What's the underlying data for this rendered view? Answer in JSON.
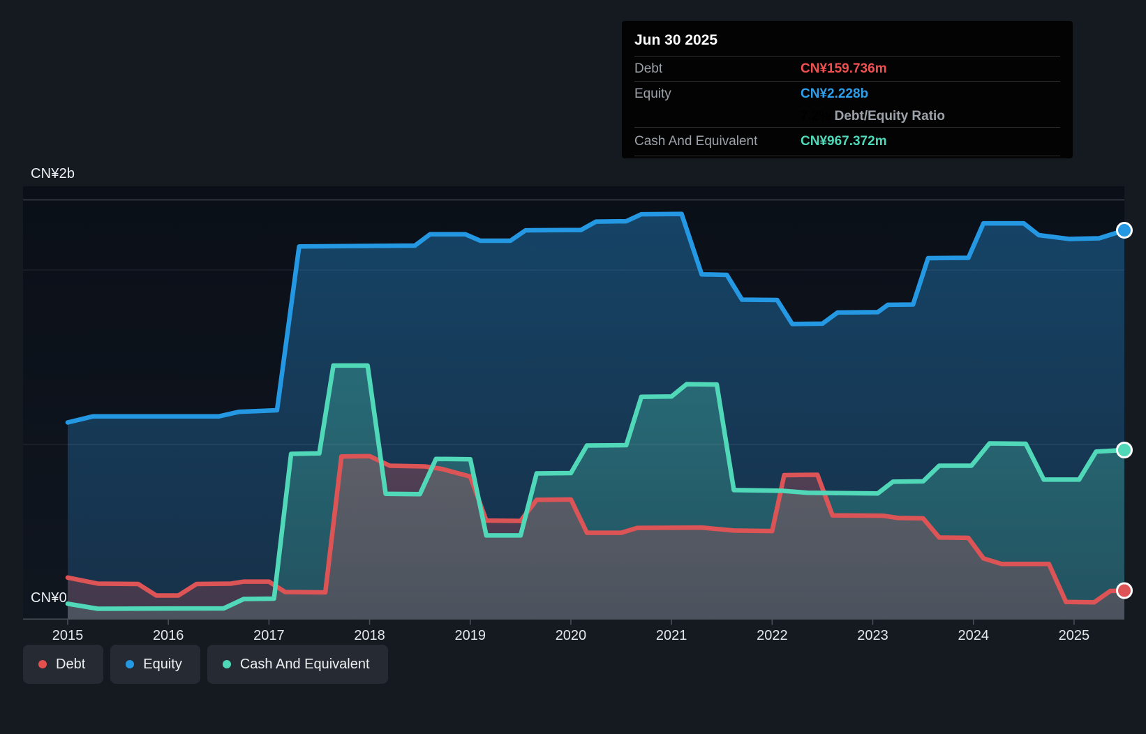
{
  "tooltip": {
    "date": "Jun 30 2025",
    "debt_label": "Debt",
    "debt_value": "CN¥159.736m",
    "equity_label": "Equity",
    "equity_value": "CN¥2.228b",
    "ratio_value": "7.2%",
    "ratio_label": "Debt/Equity Ratio",
    "cash_label": "Cash And Equivalent",
    "cash_value": "CN¥967.372m"
  },
  "y_axis": {
    "top_label": "CN¥2b",
    "zero_label": "CN¥0"
  },
  "x_axis": {
    "ticks": [
      "2015",
      "2016",
      "2017",
      "2018",
      "2019",
      "2020",
      "2021",
      "2022",
      "2023",
      "2024",
      "2025"
    ]
  },
  "legend": {
    "items": [
      {
        "label": "Debt",
        "color": "#E4504E"
      },
      {
        "label": "Equity",
        "color": "#2498E3"
      },
      {
        "label": "Cash And Equivalent",
        "color": "#4FD8B8"
      }
    ]
  },
  "colors": {
    "background": "#151A21",
    "plot_top": "#0A0F18",
    "plot_bottom": "#10161F",
    "axis": "#4A5159",
    "grid_strong": "#3A414A",
    "grid_faint": "rgba(205,215,230,0.10)",
    "debt": "#DC5456",
    "equity": "#2498E3",
    "cash": "#50D8B9"
  },
  "chart_data": {
    "type": "area",
    "unit": "CN¥ millions",
    "x_label": "Year",
    "x_range": [
      2015,
      2025.5
    ],
    "ylim_m": [
      0,
      2400
    ],
    "y_labeled_gridline_m": 2000,
    "grid": "horizontal",
    "legend_position": "bottom",
    "last_point_date": "Jun 30 2025",
    "series": [
      {
        "name": "Equity",
        "color": "#2498E3",
        "final_value": "CN¥2.228b",
        "points": [
          [
            2015.0,
            1125
          ],
          [
            2015.25,
            1160
          ],
          [
            2016.5,
            1160
          ],
          [
            2016.7,
            1186
          ],
          [
            2017.08,
            1195
          ],
          [
            2017.3,
            2135
          ],
          [
            2018.45,
            2140
          ],
          [
            2018.6,
            2205
          ],
          [
            2018.95,
            2205
          ],
          [
            2019.1,
            2168
          ],
          [
            2019.4,
            2168
          ],
          [
            2019.55,
            2228
          ],
          [
            2020.1,
            2230
          ],
          [
            2020.25,
            2278
          ],
          [
            2020.55,
            2280
          ],
          [
            2020.7,
            2320
          ],
          [
            2021.1,
            2322
          ],
          [
            2021.3,
            1975
          ],
          [
            2021.55,
            1972
          ],
          [
            2021.7,
            1830
          ],
          [
            2022.05,
            1828
          ],
          [
            2022.2,
            1690
          ],
          [
            2022.5,
            1692
          ],
          [
            2022.65,
            1756
          ],
          [
            2023.05,
            1758
          ],
          [
            2023.15,
            1800
          ],
          [
            2023.4,
            1802
          ],
          [
            2023.55,
            2068
          ],
          [
            2023.95,
            2070
          ],
          [
            2024.1,
            2268
          ],
          [
            2024.5,
            2268
          ],
          [
            2024.65,
            2200
          ],
          [
            2024.95,
            2178
          ],
          [
            2025.25,
            2182
          ],
          [
            2025.5,
            2228
          ]
        ]
      },
      {
        "name": "Debt",
        "color": "#DC5456",
        "final_value": "CN¥159.736m",
        "points": [
          [
            2015.0,
            235
          ],
          [
            2015.3,
            200
          ],
          [
            2015.7,
            198
          ],
          [
            2015.88,
            132
          ],
          [
            2016.1,
            132
          ],
          [
            2016.28,
            198
          ],
          [
            2016.62,
            200
          ],
          [
            2016.75,
            212
          ],
          [
            2017.0,
            212
          ],
          [
            2017.16,
            152
          ],
          [
            2017.56,
            150
          ],
          [
            2017.72,
            930
          ],
          [
            2018.0,
            932
          ],
          [
            2018.2,
            877
          ],
          [
            2018.55,
            873
          ],
          [
            2018.72,
            858
          ],
          [
            2019.0,
            815
          ],
          [
            2019.16,
            562
          ],
          [
            2019.5,
            560
          ],
          [
            2019.66,
            681
          ],
          [
            2020.0,
            683
          ],
          [
            2020.16,
            492
          ],
          [
            2020.5,
            492
          ],
          [
            2020.66,
            520
          ],
          [
            2021.3,
            522
          ],
          [
            2021.62,
            505
          ],
          [
            2022.0,
            502
          ],
          [
            2022.12,
            823
          ],
          [
            2022.45,
            825
          ],
          [
            2022.6,
            592
          ],
          [
            2023.1,
            590
          ],
          [
            2023.25,
            577
          ],
          [
            2023.5,
            575
          ],
          [
            2023.66,
            465
          ],
          [
            2023.95,
            463
          ],
          [
            2024.1,
            345
          ],
          [
            2024.28,
            313
          ],
          [
            2024.75,
            313
          ],
          [
            2024.92,
            95
          ],
          [
            2025.2,
            93
          ],
          [
            2025.36,
            158
          ],
          [
            2025.5,
            160
          ]
        ]
      },
      {
        "name": "Cash And Equivalent",
        "color": "#50D8B9",
        "final_value": "CN¥967.372m",
        "points": [
          [
            2015.0,
            85
          ],
          [
            2015.3,
            56
          ],
          [
            2016.55,
            58
          ],
          [
            2016.75,
            112
          ],
          [
            2017.05,
            114
          ],
          [
            2017.22,
            945
          ],
          [
            2017.5,
            948
          ],
          [
            2017.64,
            1452
          ],
          [
            2017.98,
            1452
          ],
          [
            2018.16,
            716
          ],
          [
            2018.5,
            714
          ],
          [
            2018.66,
            916
          ],
          [
            2019.0,
            914
          ],
          [
            2019.16,
            477
          ],
          [
            2019.5,
            477
          ],
          [
            2019.66,
            833
          ],
          [
            2020.0,
            835
          ],
          [
            2020.16,
            993
          ],
          [
            2020.55,
            995
          ],
          [
            2020.7,
            1272
          ],
          [
            2021.0,
            1274
          ],
          [
            2021.15,
            1345
          ],
          [
            2021.45,
            1343
          ],
          [
            2021.62,
            737
          ],
          [
            2022.1,
            733
          ],
          [
            2022.35,
            722
          ],
          [
            2023.05,
            718
          ],
          [
            2023.2,
            785
          ],
          [
            2023.5,
            787
          ],
          [
            2023.66,
            877
          ],
          [
            2023.98,
            877
          ],
          [
            2024.16,
            1005
          ],
          [
            2024.52,
            1003
          ],
          [
            2024.7,
            797
          ],
          [
            2025.05,
            797
          ],
          [
            2025.22,
            958
          ],
          [
            2025.5,
            967
          ]
        ]
      }
    ]
  }
}
